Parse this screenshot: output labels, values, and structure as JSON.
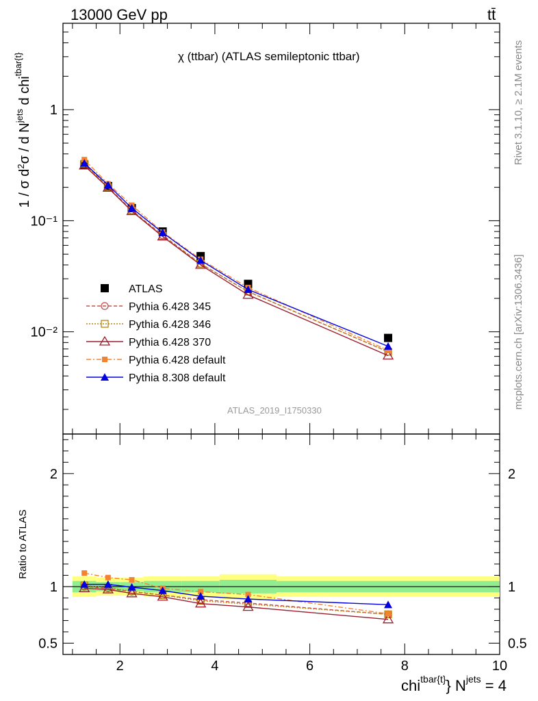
{
  "header": {
    "energy_label": "13000 GeV pp",
    "process_label": "tt̄"
  },
  "side_labels": {
    "rivet": "Rivet 3.1.10, ≥ 2.1M events",
    "mcplots": "mcplots.cern.ch [arXiv:1306.3436]"
  },
  "chart_data": [
    {
      "type": "scatter",
      "panel": "main",
      "title": "χ (ttbar) (ATLAS semileptonic ttbar)",
      "ylabel": "1 / σ d²σ / d N^jets d chi^tbar{t}",
      "yscale": "log",
      "ylim": [
        0.0012,
        6.0
      ],
      "xlim": [
        0.8,
        10
      ],
      "ytick_labels": [
        "1",
        "10⁻¹",
        "10⁻²"
      ],
      "watermark": "ATLAS_2019_I1750330",
      "legend_position": "center-left",
      "x": [
        1.25,
        1.75,
        2.25,
        2.9,
        3.7,
        4.7,
        7.65
      ],
      "series": [
        {
          "name": "ATLAS",
          "marker": "filled-square",
          "color": "#000000",
          "values": [
            0.32,
            0.205,
            0.13,
            0.08,
            0.048,
            0.027,
            0.0088
          ]
        },
        {
          "name": "Pythia 6.428 345",
          "marker": "open-circle",
          "line": "dashed",
          "color": "#c0504d",
          "values": [
            0.328,
            0.202,
            0.124,
            0.074,
            0.041,
            0.023,
            0.0066
          ]
        },
        {
          "name": "Pythia 6.428 346",
          "marker": "open-square",
          "line": "dotted",
          "color": "#b8860b",
          "values": [
            0.326,
            0.2,
            0.123,
            0.073,
            0.041,
            0.023,
            0.0066
          ]
        },
        {
          "name": "Pythia 6.428 370",
          "marker": "open-triangle",
          "line": "solid",
          "color": "#9b1c2e",
          "values": [
            0.314,
            0.198,
            0.122,
            0.072,
            0.04,
            0.0215,
            0.0061
          ]
        },
        {
          "name": "Pythia 6.428 default",
          "marker": "filled-square-small",
          "line": "dashdot",
          "color": "#f58231",
          "values": [
            0.355,
            0.215,
            0.138,
            0.079,
            0.045,
            0.025,
            0.0068
          ]
        },
        {
          "name": "Pythia 8.308 default",
          "marker": "filled-triangle",
          "line": "solid",
          "color": "#0000e0",
          "values": [
            0.33,
            0.21,
            0.13,
            0.078,
            0.044,
            0.024,
            0.0074
          ]
        }
      ]
    },
    {
      "type": "line",
      "panel": "ratio",
      "ylabel": "Ratio to ATLAS",
      "xlabel": "chi^tbar{t} N^jets = 4",
      "ylim": [
        0.4,
        2.35
      ],
      "xlim": [
        0.8,
        10
      ],
      "xtick_labels": [
        "2",
        "4",
        "6",
        "8",
        "10"
      ],
      "ytick_labels": [
        "0.5",
        "1",
        "2"
      ],
      "bands": {
        "x_edges": [
          1.0,
          1.5,
          2.0,
          2.5,
          3.3,
          4.1,
          5.3,
          10.0
        ],
        "outer_half_width": [
          0.09,
          0.08,
          0.08,
          0.09,
          0.09,
          0.11,
          0.09
        ],
        "inner_half_width": [
          0.05,
          0.04,
          0.04,
          0.05,
          0.05,
          0.06,
          0.05
        ],
        "outer_color": "#ffff80",
        "inner_color": "#90ee90"
      },
      "x": [
        1.25,
        1.75,
        2.25,
        2.9,
        3.7,
        4.7,
        7.65
      ],
      "series": [
        {
          "name": "Pythia 6.428 345",
          "values": [
            1.0,
            0.985,
            0.955,
            0.925,
            0.885,
            0.855,
            0.755
          ]
        },
        {
          "name": "Pythia 6.428 346",
          "values": [
            1.01,
            0.99,
            0.96,
            0.925,
            0.875,
            0.845,
            0.755
          ]
        },
        {
          "name": "Pythia 6.428 370",
          "values": [
            0.985,
            0.975,
            0.94,
            0.91,
            0.85,
            0.82,
            0.71
          ]
        },
        {
          "name": "Pythia 6.428 default",
          "values": [
            1.12,
            1.08,
            1.06,
            0.985,
            0.955,
            0.93,
            0.76
          ]
        },
        {
          "name": "Pythia 8.308 default",
          "values": [
            1.02,
            1.02,
            0.995,
            0.965,
            0.915,
            0.89,
            0.84
          ]
        }
      ]
    }
  ]
}
